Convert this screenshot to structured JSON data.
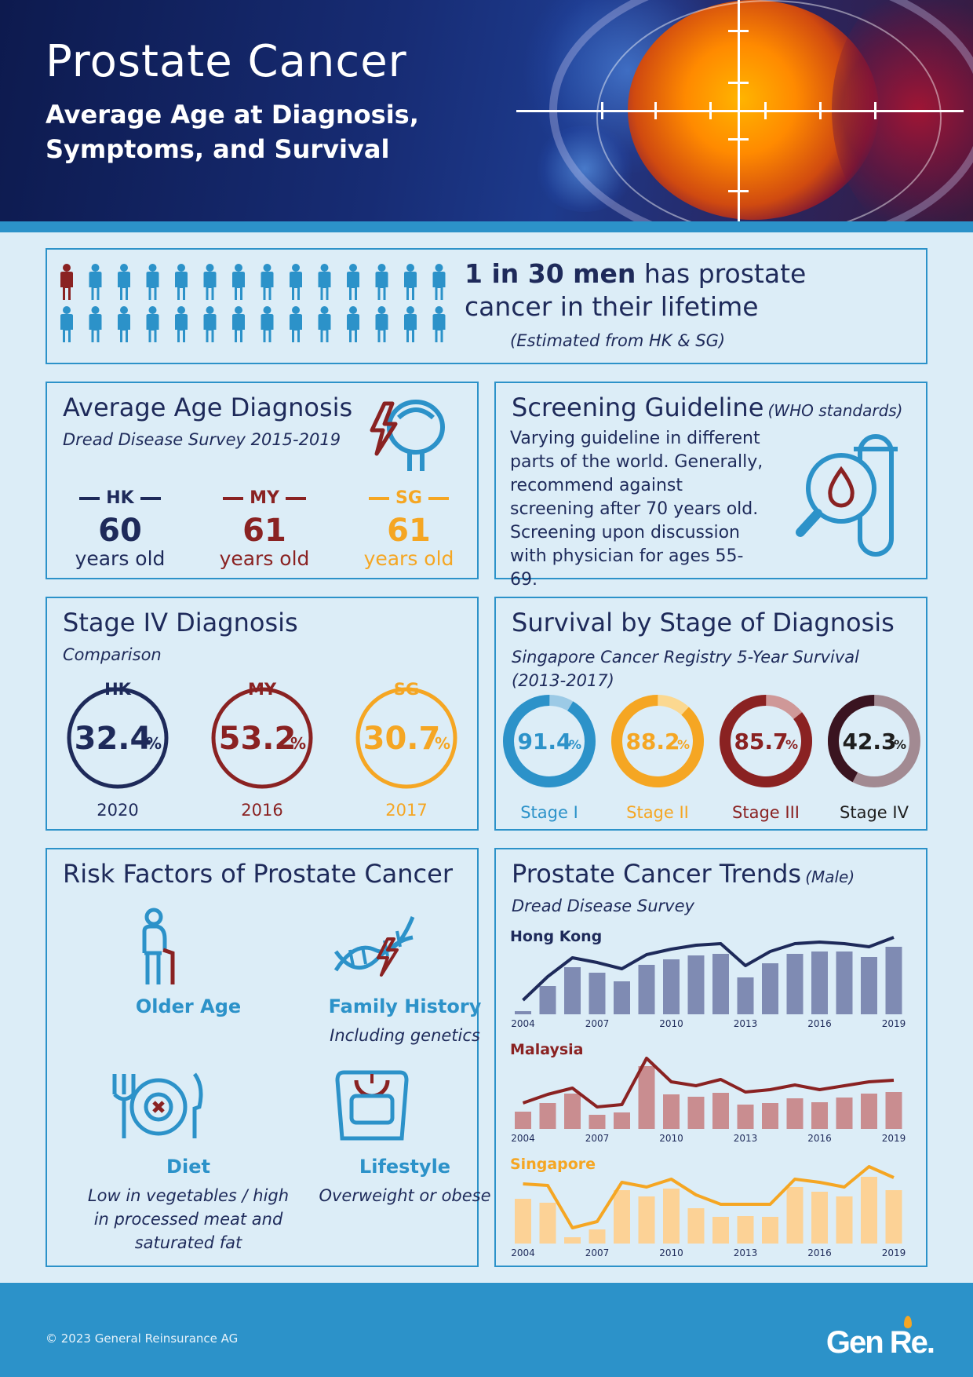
{
  "header": {
    "title": "Prostate Cancer",
    "subtitle": "Average Age at Diagnosis, Symptoms, and Survival"
  },
  "incidence": {
    "highlight": "1 in 30 men",
    "rest": " has prostate cancer in their lifetime",
    "note": "(Estimated from HK & SG)",
    "ratio": {
      "affected": 1,
      "total": 30
    }
  },
  "age": {
    "title": "Average Age Diagnosis",
    "source": "Dread Disease Survey 2015-2019",
    "items": [
      {
        "code": "HK",
        "age": "60",
        "unit": "years old",
        "color": "#1e2a5a"
      },
      {
        "code": "MY",
        "age": "61",
        "unit": "years old",
        "color": "#8a2222"
      },
      {
        "code": "SG",
        "age": "61",
        "unit": "years old",
        "color": "#f5a623"
      }
    ]
  },
  "screening": {
    "title": "Screening Guideline",
    "qualifier": "(WHO standards)",
    "text": "Varying guideline in different parts of the world. Generally, recommend against screening after 70 years old. Screening upon discussion with physician for ages 55-69."
  },
  "stage4": {
    "title": "Stage IV Diagnosis",
    "subtitle": "Comparison",
    "items": [
      {
        "code": "HK",
        "value": "32.4",
        "unit": "%",
        "year": "2020",
        "color": "#1e2a5a"
      },
      {
        "code": "MY",
        "value": "53.2",
        "unit": "%",
        "year": "2016",
        "color": "#8a2222"
      },
      {
        "code": "SG",
        "value": "30.7",
        "unit": "%",
        "year": "2017",
        "color": "#f5a623"
      }
    ]
  },
  "survival": {
    "title": "Survival by Stage of Diagnosis",
    "subtitle": "Singapore Cancer Registry 5-Year Survival (2013-2017)",
    "items": [
      {
        "label": "Stage I",
        "value": "91.4",
        "unit": "%",
        "pct": 91.4,
        "color": "#2c92c9",
        "track": "#9ccae6",
        "text": "#2c92c9"
      },
      {
        "label": "Stage II",
        "value": "88.2",
        "unit": "%",
        "pct": 88.2,
        "color": "#f5a623",
        "track": "#fbd890",
        "text": "#f5a623"
      },
      {
        "label": "Stage III",
        "value": "85.7",
        "unit": "%",
        "pct": 85.7,
        "color": "#8a2222",
        "track": "#cf9898",
        "text": "#8a2222"
      },
      {
        "label": "Stage IV",
        "value": "42.3",
        "unit": "%",
        "pct": 42.3,
        "color": "#3a1420",
        "track": "#a28a92",
        "text": "#1e1e1e"
      }
    ]
  },
  "risk": {
    "title": "Risk Factors of Prostate Cancer",
    "items": [
      {
        "title": "Older Age",
        "desc": "",
        "icon": "elderly-person-icon"
      },
      {
        "title": "Family History",
        "desc": "Including genetics",
        "icon": "dna-icon"
      },
      {
        "title": "Diet",
        "desc": "Low in vegetables / high in processed meat and saturated fat",
        "icon": "plate-icon"
      },
      {
        "title": "Lifestyle",
        "desc": "Overweight or obese",
        "icon": "scale-icon"
      }
    ]
  },
  "trends": {
    "title": "Prostate Cancer Trends",
    "qualifier": "(Male)",
    "subtitle": "Dread Disease Survey",
    "year_labels": [
      "2004",
      "2007",
      "2010",
      "2013",
      "2016",
      "2019"
    ]
  },
  "chart_data": [
    {
      "type": "bar",
      "title": "Hong Kong",
      "color": "#1e2a5a",
      "bar_color": "#7f8bb3",
      "categories": [
        "2004",
        "2005",
        "2006",
        "2007",
        "2008",
        "2009",
        "2010",
        "2011",
        "2012",
        "2013",
        "2014",
        "2015",
        "2016",
        "2017",
        "2018",
        "2019"
      ],
      "values": [
        4,
        36,
        60,
        53,
        42,
        63,
        70,
        75,
        77,
        47,
        65,
        77,
        80,
        80,
        73,
        86
      ],
      "line": [
        18,
        48,
        72,
        66,
        58,
        76,
        83,
        88,
        90,
        62,
        80,
        90,
        92,
        90,
        86,
        98
      ]
    },
    {
      "type": "bar",
      "title": "Malaysia",
      "color": "#8a2222",
      "bar_color": "#c98d90",
      "categories": [
        "2004",
        "2005",
        "2006",
        "2007",
        "2008",
        "2009",
        "2010",
        "2011",
        "2012",
        "2013",
        "2014",
        "2015",
        "2016",
        "2017",
        "2018",
        "2019"
      ],
      "values": [
        22,
        33,
        45,
        18,
        21,
        80,
        44,
        41,
        46,
        31,
        33,
        39,
        34,
        40,
        45,
        47
      ],
      "line": [
        33,
        44,
        52,
        28,
        31,
        90,
        60,
        55,
        63,
        47,
        50,
        56,
        50,
        55,
        60,
        62
      ]
    },
    {
      "type": "bar",
      "title": "Singapore",
      "color": "#f5a623",
      "bar_color": "#fcd296",
      "categories": [
        "2004",
        "2005",
        "2006",
        "2007",
        "2008",
        "2009",
        "2010",
        "2011",
        "2012",
        "2013",
        "2014",
        "2015",
        "2016",
        "2017",
        "2018",
        "2019"
      ],
      "values": [
        57,
        52,
        8,
        18,
        68,
        60,
        70,
        45,
        34,
        35,
        34,
        72,
        66,
        60,
        85,
        68
      ],
      "line": [
        76,
        74,
        20,
        28,
        78,
        72,
        82,
        62,
        50,
        50,
        50,
        82,
        78,
        72,
        98,
        84
      ]
    }
  ],
  "footer": {
    "copyright": "© 2023 General Reinsurance AG",
    "logo": "Gen Re."
  }
}
